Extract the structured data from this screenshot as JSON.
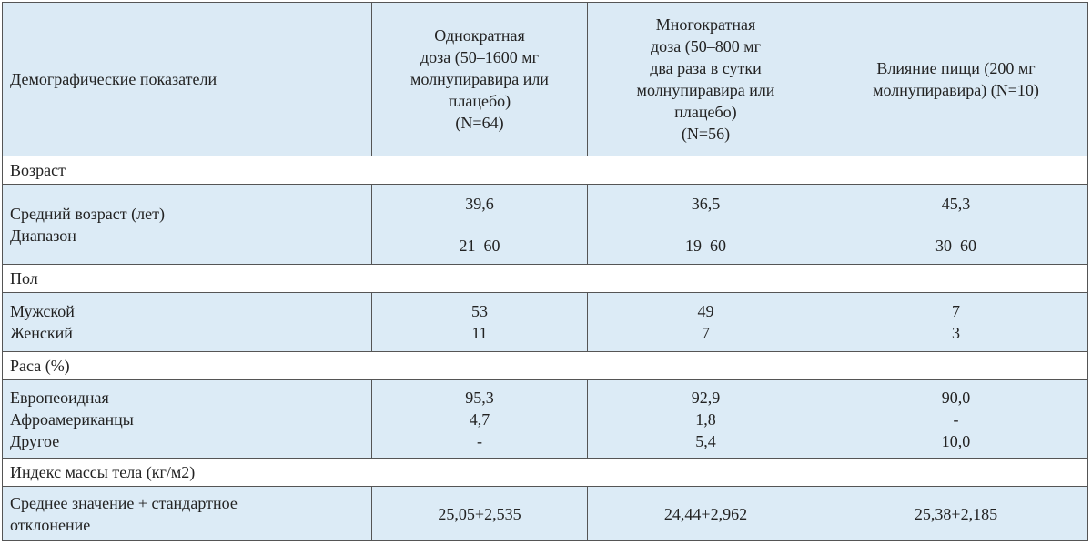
{
  "table": {
    "header": {
      "label": "Демографические показатели",
      "columns": [
        [
          "Однократная",
          "доза (50–1600 мг",
          "молнупиравира или",
          "плацебо)",
          "(N=64)"
        ],
        [
          "Многократная",
          "доза (50–800 мг",
          "два раза в сутки",
          "молнупиравира или",
          "плацебо)",
          "(N=56)"
        ],
        [
          "Влияние пищи (200 мг",
          "молнупиравира) (N=10)"
        ]
      ]
    },
    "sections": [
      {
        "title": "Возраст",
        "labels": [
          "Средний возраст (лет)",
          "Диапазон"
        ],
        "values": [
          [
            "39,6",
            "21–60"
          ],
          [
            "36,5",
            "19–60"
          ],
          [
            "45,3",
            "30–60"
          ]
        ]
      },
      {
        "title": "Пол",
        "labels": [
          "Мужской",
          "Женский"
        ],
        "values": [
          [
            "53",
            "11"
          ],
          [
            "49",
            "7"
          ],
          [
            "7",
            "3"
          ]
        ]
      },
      {
        "title": "Раса (%)",
        "labels": [
          "Европеоидная",
          "Афроамериканцы",
          "Другое"
        ],
        "values": [
          [
            "95,3",
            "4,7",
            "-"
          ],
          [
            "92,9",
            "1,8",
            "5,4"
          ],
          [
            "90,0",
            "-",
            "10,0"
          ]
        ]
      },
      {
        "title": "Индекс массы тела (кг/м2)",
        "labels": [
          "Среднее значение + стандартное",
          "отклонение"
        ],
        "values": [
          [
            "25,05+2,535"
          ],
          [
            "24,44+2,962"
          ],
          [
            "25,38+2,185"
          ]
        ]
      }
    ]
  }
}
